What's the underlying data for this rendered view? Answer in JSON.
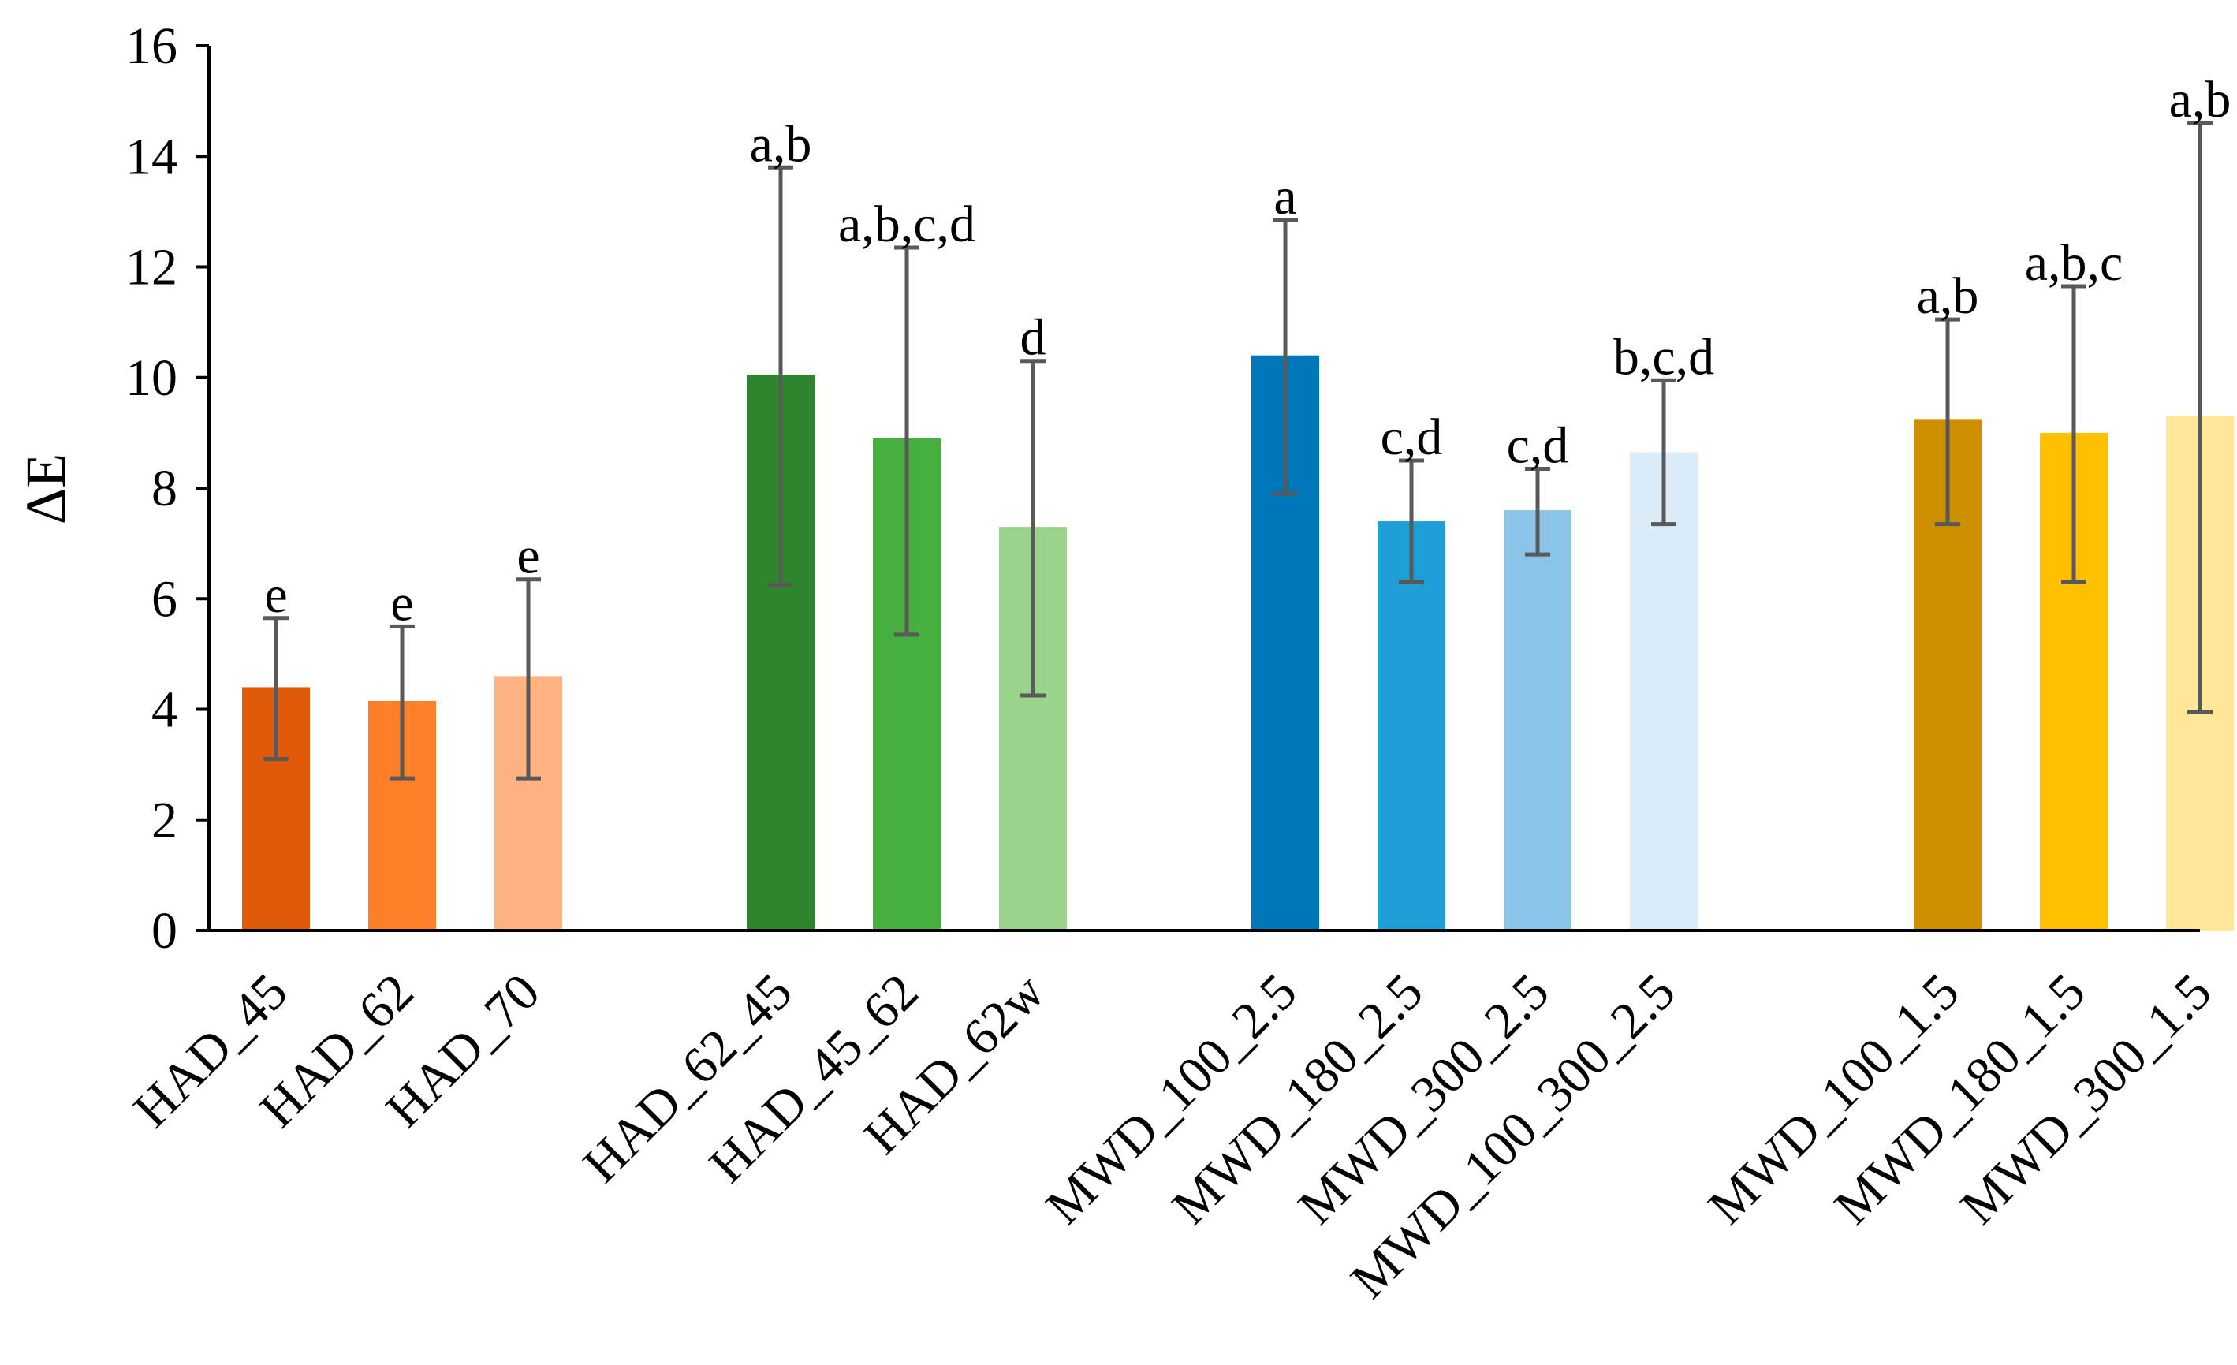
{
  "chart_data": {
    "type": "bar",
    "title": "",
    "xlabel": "",
    "ylabel": "ΔE",
    "ylim": [
      0,
      16
    ],
    "yticks": [
      0,
      2,
      4,
      6,
      8,
      10,
      12,
      14,
      16
    ],
    "grid": false,
    "legend": "none",
    "categories": [
      "HAD_45",
      "HAD_62",
      "HAD_70",
      "HAD_62_45",
      "HAD_45_62",
      "HAD_62w",
      "MWD_100_2.5",
      "MWD_180_2.5",
      "MWD_300_2.5",
      "MWD_100_300_2.5",
      "MWD_100_1.5",
      "MWD_180_1.5",
      "MWD_300_1.5"
    ],
    "groups": [
      [
        0,
        1,
        2
      ],
      [
        3,
        4,
        5
      ],
      [
        6,
        7,
        8,
        9
      ],
      [
        10,
        11,
        12
      ]
    ],
    "values": [
      4.4,
      4.15,
      4.6,
      10.05,
      8.9,
      7.3,
      10.4,
      7.4,
      7.6,
      8.65,
      9.25,
      9.0,
      9.3
    ],
    "error_low": [
      3.1,
      2.75,
      2.75,
      6.25,
      5.35,
      4.25,
      7.9,
      6.3,
      6.8,
      7.35,
      7.35,
      6.3,
      3.95
    ],
    "error_high": [
      5.65,
      5.5,
      6.35,
      13.8,
      12.35,
      10.3,
      12.85,
      8.5,
      8.35,
      9.95,
      11.05,
      11.65,
      14.6
    ],
    "significance": [
      "e",
      "e",
      "e",
      "a,b",
      "a,b,c,d",
      "d",
      "a",
      "c,d",
      "c,d",
      "b,c,d",
      "a,b",
      "a,b,c",
      "a,b"
    ],
    "colors": [
      "#E05A0A",
      "#FF7F2A",
      "#FFB380",
      "#2E852E",
      "#45B03D",
      "#9AD48C",
      "#0077BB",
      "#1E9FD8",
      "#8CC4E8",
      "#DCEBF8",
      "#CC8F00",
      "#FFC000",
      "#FFE699"
    ],
    "error_bar_color": "#595959"
  }
}
